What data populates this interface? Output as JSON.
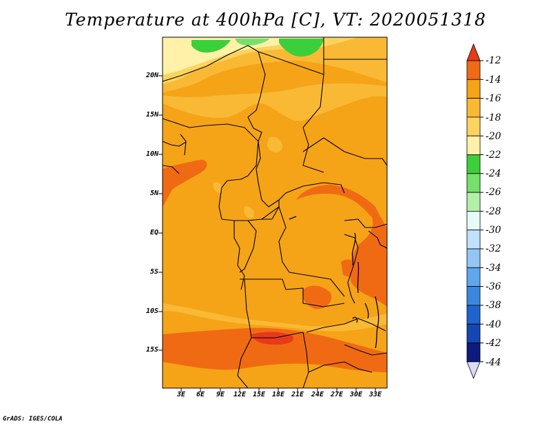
{
  "title": "Temperature at 400hPa [C], VT: 2020051318",
  "credit": "GrADS: IGES/COLA",
  "latitude_labels": [
    "20N",
    "15N",
    "10N",
    "5N",
    "EQ",
    "5S",
    "10S",
    "15S"
  ],
  "longitude_labels": [
    "3E",
    "6E",
    "9E",
    "12E",
    "15E",
    "18E",
    "21E",
    "24E",
    "27E",
    "30E",
    "33E"
  ],
  "colorbar": {
    "labels": [
      "-12",
      "-14",
      "-16",
      "-18",
      "-20",
      "-22",
      "-24",
      "-26",
      "-28",
      "-30",
      "-32",
      "-34",
      "-36",
      "-38",
      "-40",
      "-42",
      "-44"
    ],
    "colors": [
      "#e8391a",
      "#f06a14",
      "#f5a317",
      "#f9b935",
      "#fbd35e",
      "#fff2a8",
      "#3ccf3c",
      "#76e06a",
      "#b2f0a8",
      "#e6fbf5",
      "#bfe1fa",
      "#93c5f5",
      "#5fa7ec",
      "#3b87de",
      "#1f63ce",
      "#1447b4",
      "#0d1a80",
      "#dadcf5"
    ]
  }
}
